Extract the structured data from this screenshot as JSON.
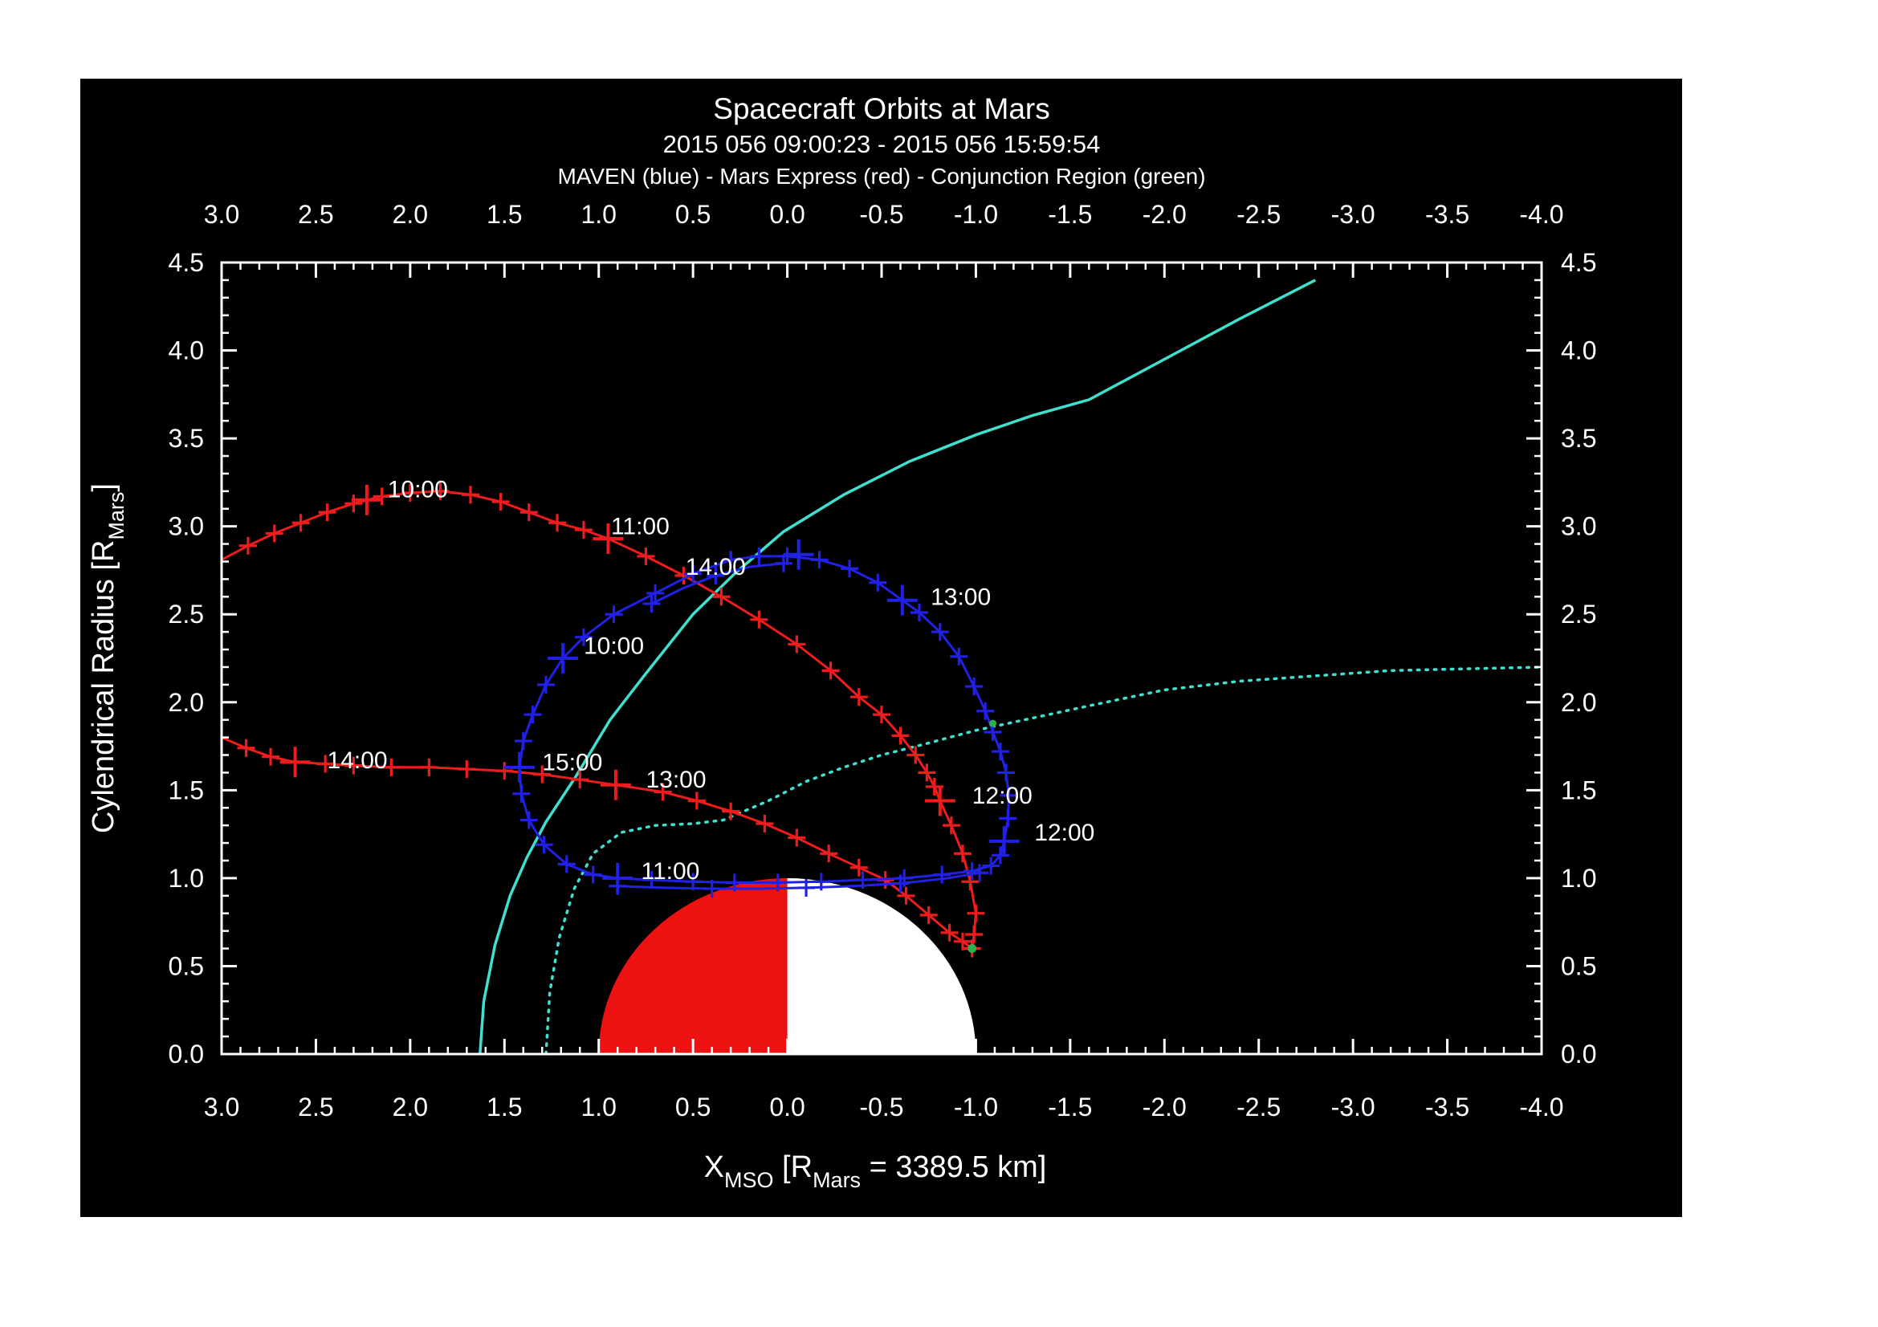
{
  "header": {
    "title": "Spacecraft Orbits at Mars",
    "subtitle": "2015 056 09:00:23 - 2015 056 15:59:54",
    "legend": "MAVEN (blue) - Mars Express (red) - Conjunction Region (green)"
  },
  "colors": {
    "background": "#ffffff",
    "figure": "#000000",
    "axis": "#ffffff",
    "maven": "#2121e6",
    "mex": "#ee1c1c",
    "bow_shock": "#3fe0d0",
    "mpb": "#3fe0d0",
    "conjunction": "#2fb04a",
    "mars_day": "#ee1111",
    "mars_night": "#ffffff"
  },
  "chart_data": {
    "type": "line",
    "title": "Spacecraft Orbits at Mars",
    "x_axis": {
      "min": 3.0,
      "max": -4.0,
      "major_step": 0.5,
      "minor_step": 0.1,
      "tick_labels": [
        "3.0",
        "2.5",
        "2.0",
        "1.5",
        "1.0",
        "0.5",
        "0.0",
        "-0.5",
        "-1.0",
        "-1.5",
        "-2.0",
        "-2.5",
        "-3.0",
        "-3.5",
        "-4.0"
      ]
    },
    "y_axis": {
      "min": 0.0,
      "max": 4.5,
      "major_step": 0.5,
      "minor_step": 0.1,
      "tick_labels": [
        "0.0",
        "0.5",
        "1.0",
        "1.5",
        "2.0",
        "2.5",
        "3.0",
        "3.5",
        "4.0",
        "4.5"
      ]
    },
    "x_title_parts": [
      {
        "t": "X"
      },
      {
        "t": "MSO",
        "sub": true
      },
      {
        "t": " [R"
      },
      {
        "t": "Mars",
        "sub": true
      },
      {
        "t": " = 3389.5 km]"
      }
    ],
    "y_title_parts": [
      {
        "t": "Cylendrical Radius [R"
      },
      {
        "t": "Mars",
        "sub": true
      },
      {
        "t": "]"
      }
    ],
    "mars": {
      "cx": 0,
      "cy": 0,
      "r": 1,
      "dayside": "left-red",
      "nightside": "right-white"
    },
    "series": [
      {
        "name": "bow-shock",
        "legend_name": "bow shock boundary",
        "color": "bow_shock",
        "width": 3.5,
        "dash": null,
        "marker_every": 0,
        "points": [
          [
            1.63,
            0
          ],
          [
            1.61,
            0.3
          ],
          [
            1.55,
            0.62
          ],
          [
            1.47,
            0.9
          ],
          [
            1.38,
            1.12
          ],
          [
            1.28,
            1.32
          ],
          [
            1.12,
            1.58
          ],
          [
            0.94,
            1.9
          ],
          [
            0.76,
            2.15
          ],
          [
            0.5,
            2.5
          ],
          [
            0.28,
            2.73
          ],
          [
            0.02,
            2.97
          ],
          [
            -0.3,
            3.18
          ],
          [
            -0.65,
            3.37
          ],
          [
            -1.0,
            3.52
          ],
          [
            -1.3,
            3.63
          ],
          [
            -1.6,
            3.72
          ],
          [
            -2.0,
            3.95
          ],
          [
            -2.4,
            4.18
          ],
          [
            -2.8,
            4.4
          ]
        ]
      },
      {
        "name": "magnetopause",
        "legend_name": "magnetic pileup boundary",
        "color": "mpb",
        "width": 3.5,
        "dash": "2.5 8",
        "marker_every": 0,
        "points": [
          [
            1.28,
            0
          ],
          [
            1.26,
            0.35
          ],
          [
            1.21,
            0.66
          ],
          [
            1.13,
            0.94
          ],
          [
            1.03,
            1.14
          ],
          [
            0.88,
            1.26
          ],
          [
            0.7,
            1.3
          ],
          [
            0.5,
            1.31
          ],
          [
            0.34,
            1.33
          ],
          [
            0.1,
            1.44
          ],
          [
            -0.1,
            1.55
          ],
          [
            -0.3,
            1.63
          ],
          [
            -0.5,
            1.7
          ],
          [
            -0.72,
            1.76
          ],
          [
            -1.0,
            1.84
          ],
          [
            -1.3,
            1.91
          ],
          [
            -1.6,
            1.98
          ],
          [
            -2.0,
            2.07
          ],
          [
            -2.4,
            2.12
          ],
          [
            -2.8,
            2.15
          ],
          [
            -3.2,
            2.18
          ],
          [
            -3.6,
            2.19
          ],
          [
            -4.0,
            2.2
          ]
        ]
      },
      {
        "name": "mars-express-orbit",
        "legend_name": "Mars Express (red)",
        "color": "mex",
        "width": 3,
        "dash": null,
        "marker_every": 1,
        "marker_size": 11,
        "points": [
          [
            3.0,
            2.81
          ],
          [
            2.86,
            2.89
          ],
          [
            2.72,
            2.96
          ],
          [
            2.58,
            3.02
          ],
          [
            2.44,
            3.08
          ],
          [
            2.3,
            3.13
          ],
          [
            2.15,
            3.17
          ],
          [
            2.0,
            3.19
          ],
          [
            1.84,
            3.2
          ],
          [
            1.68,
            3.18
          ],
          [
            1.52,
            3.14
          ],
          [
            1.37,
            3.08
          ],
          [
            1.22,
            3.02
          ],
          [
            1.08,
            2.98
          ],
          [
            0.95,
            2.93
          ],
          [
            0.75,
            2.83
          ],
          [
            0.55,
            2.72
          ],
          [
            0.35,
            2.6
          ],
          [
            0.15,
            2.47
          ],
          [
            -0.05,
            2.33
          ],
          [
            -0.23,
            2.18
          ],
          [
            -0.38,
            2.03
          ],
          [
            -0.5,
            1.93
          ],
          [
            -0.6,
            1.81
          ],
          [
            -0.68,
            1.7
          ],
          [
            -0.74,
            1.6
          ],
          [
            -0.78,
            1.52
          ],
          [
            -0.81,
            1.44
          ],
          [
            -0.87,
            1.3
          ],
          [
            -0.93,
            1.14
          ],
          [
            -0.97,
            0.98
          ],
          [
            -1.0,
            0.8
          ],
          [
            -0.99,
            0.68
          ],
          [
            -0.98,
            0.6
          ],
          [
            -0.93,
            0.64
          ],
          [
            -0.86,
            0.69
          ],
          [
            -0.75,
            0.79
          ],
          [
            -0.63,
            0.9
          ],
          [
            -0.52,
            0.99
          ],
          [
            -0.38,
            1.06
          ],
          [
            -0.22,
            1.14
          ],
          [
            -0.05,
            1.23
          ],
          [
            0.12,
            1.31
          ],
          [
            0.3,
            1.38
          ],
          [
            0.48,
            1.44
          ],
          [
            0.66,
            1.49
          ],
          [
            0.91,
            1.53
          ],
          [
            1.1,
            1.56
          ],
          [
            1.3,
            1.59
          ],
          [
            1.5,
            1.61
          ],
          [
            1.7,
            1.62
          ],
          [
            1.9,
            1.63
          ],
          [
            2.1,
            1.63
          ],
          [
            2.3,
            1.64
          ],
          [
            2.45,
            1.65
          ],
          [
            2.61,
            1.66
          ],
          [
            2.74,
            1.69
          ],
          [
            2.87,
            1.74
          ],
          [
            3.0,
            1.8
          ]
        ]
      },
      {
        "name": "maven-orbit",
        "legend_name": "MAVEN (blue)",
        "color": "maven",
        "width": 3,
        "dash": null,
        "marker_every": 1,
        "marker_size": 11,
        "points": [
          [
            0.3,
            2.81
          ],
          [
            0.5,
            2.73
          ],
          [
            0.7,
            2.62
          ],
          [
            0.92,
            2.5
          ],
          [
            1.08,
            2.37
          ],
          [
            1.19,
            2.25
          ],
          [
            1.28,
            2.1
          ],
          [
            1.35,
            1.93
          ],
          [
            1.4,
            1.78
          ],
          [
            1.42,
            1.63
          ],
          [
            1.41,
            1.48
          ],
          [
            1.37,
            1.33
          ],
          [
            1.29,
            1.19
          ],
          [
            1.17,
            1.08
          ],
          [
            1.03,
            1.02
          ],
          [
            0.9,
            1.0
          ],
          [
            0.72,
            0.99
          ],
          [
            0.5,
            0.98
          ],
          [
            0.28,
            0.975
          ],
          [
            0.05,
            0.975
          ],
          [
            -0.18,
            0.98
          ],
          [
            -0.4,
            0.99
          ],
          [
            -0.62,
            1.0
          ],
          [
            -0.82,
            1.02
          ],
          [
            -0.98,
            1.04
          ],
          [
            -1.08,
            1.07
          ],
          [
            -1.13,
            1.13
          ],
          [
            -1.15,
            1.21
          ],
          [
            -1.17,
            1.34
          ],
          [
            -1.175,
            1.47
          ],
          [
            -1.16,
            1.6
          ],
          [
            -1.13,
            1.72
          ],
          [
            -1.09,
            1.83
          ],
          [
            -1.05,
            1.95
          ],
          [
            -0.99,
            2.09
          ],
          [
            -0.91,
            2.26
          ],
          [
            -0.81,
            2.4
          ],
          [
            -0.7,
            2.51
          ],
          [
            -0.61,
            2.58
          ],
          [
            -0.48,
            2.68
          ],
          [
            -0.33,
            2.76
          ],
          [
            -0.17,
            2.81
          ],
          [
            0.0,
            2.83
          ],
          [
            0.15,
            2.83
          ],
          [
            0.3,
            2.81
          ]
        ]
      },
      {
        "name": "maven-orbit-retrace-top",
        "legend_name": "MAVEN repeat pass",
        "color": "maven",
        "width": 3,
        "dash": null,
        "marker_every": 2,
        "marker_size": 11,
        "points": [
          [
            0.72,
            2.56
          ],
          [
            0.55,
            2.65
          ],
          [
            0.38,
            2.72
          ],
          [
            0.2,
            2.77
          ],
          [
            0.02,
            2.79
          ]
        ]
      },
      {
        "name": "maven-orbit-retrace-bottom",
        "legend_name": "MAVEN repeat pass",
        "color": "maven",
        "width": 3,
        "dash": null,
        "marker_every": 2,
        "marker_size": 11,
        "points": [
          [
            0.9,
            0.955
          ],
          [
            0.65,
            0.945
          ],
          [
            0.4,
            0.94
          ],
          [
            0.15,
            0.94
          ],
          [
            -0.1,
            0.945
          ],
          [
            -0.35,
            0.955
          ],
          [
            -0.6,
            0.97
          ],
          [
            -0.85,
            1.0
          ],
          [
            -1.02,
            1.03
          ]
        ]
      }
    ],
    "hour_markers": {
      "mex": [
        [
          2.23,
          3.15
        ],
        [
          0.95,
          2.93
        ],
        [
          -0.81,
          1.44
        ],
        [
          0.91,
          1.53
        ],
        [
          2.61,
          1.66
        ]
      ],
      "maven": [
        [
          1.19,
          2.25
        ],
        [
          0.9,
          1.0
        ],
        [
          -1.15,
          1.21
        ],
        [
          -0.61,
          2.58
        ],
        [
          -0.06,
          2.84
        ],
        [
          1.42,
          1.63
        ]
      ]
    },
    "conjunction_points": [
      [
        -0.98,
        0.6
      ],
      [
        -1.09,
        1.88
      ]
    ],
    "time_labels": [
      {
        "text": "10:00",
        "x": 1.96,
        "y": 3.21,
        "series": "mex"
      },
      {
        "text": "11:00",
        "x": 0.78,
        "y": 3.0,
        "series": "mex"
      },
      {
        "text": "12:00",
        "x": -1.14,
        "y": 1.47,
        "series": "mex"
      },
      {
        "text": "13:00",
        "x": 0.59,
        "y": 1.56,
        "series": "mex"
      },
      {
        "text": "14:00",
        "x": 2.28,
        "y": 1.67,
        "series": "mex"
      },
      {
        "text": "10:00",
        "x": 0.92,
        "y": 2.32,
        "series": "maven"
      },
      {
        "text": "11:00",
        "x": 0.62,
        "y": 1.04,
        "series": "maven"
      },
      {
        "text": "12:00",
        "x": -1.47,
        "y": 1.26,
        "series": "maven"
      },
      {
        "text": "13:00",
        "x": -0.92,
        "y": 2.6,
        "series": "maven"
      },
      {
        "text": "14:00",
        "x": 0.38,
        "y": 2.77,
        "series": "maven"
      },
      {
        "text": "15:00",
        "x": 1.14,
        "y": 1.66,
        "series": "maven"
      }
    ]
  }
}
